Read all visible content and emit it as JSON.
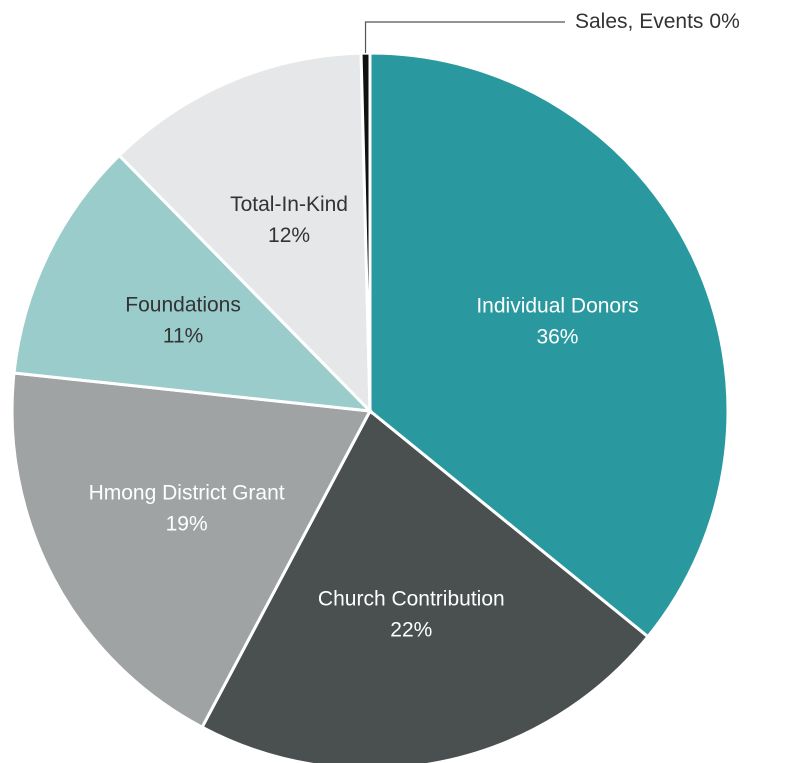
{
  "chart_data": {
    "type": "pie",
    "categories": [
      "Individual Donors",
      "Church Contribution",
      "Hmong District Grant",
      "Foundations",
      "Total-In-Kind",
      "Sales, Events"
    ],
    "values": [
      36,
      22,
      19,
      11,
      12,
      0.4
    ],
    "value_labels": [
      "36%",
      "22%",
      "19%",
      "11%",
      "12%",
      "0%"
    ],
    "colors": [
      "#2a999f",
      "#4a4f4f",
      "#a0a3a3",
      "#9acccb",
      "#e6e7e8",
      "#111111"
    ]
  }
}
